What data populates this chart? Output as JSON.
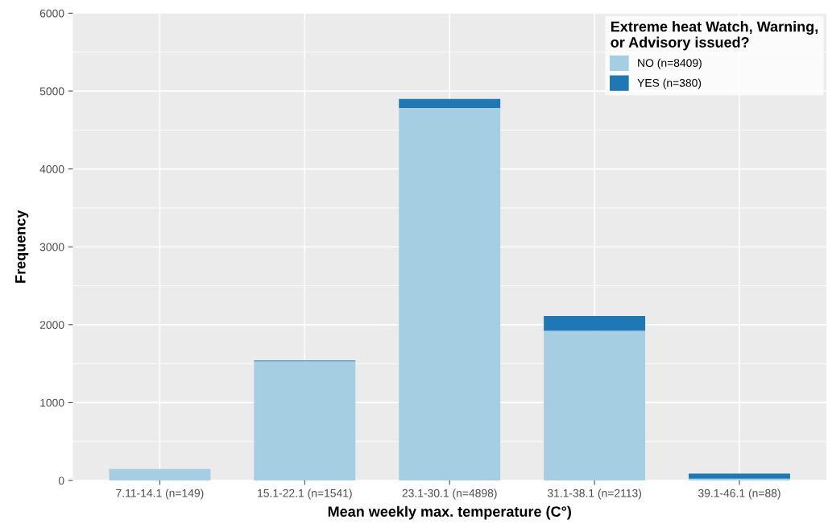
{
  "chart_data": {
    "type": "bar",
    "stacked": true,
    "xlabel": "Mean weekly max. temperature (C°)",
    "ylabel": "Frequency",
    "legend_title": "Extreme heat Watch, Warning,\nor Advisory issued?",
    "categories": [
      "7.11-14.1 (n=149)",
      "15.1-22.1 (n=1541)",
      "23.1-30.1 (n=4898)",
      "31.1-38.1 (n=2113)",
      "39.1-46.1 (n=88)"
    ],
    "series": [
      {
        "name": "NO (n=8409)",
        "color": "#a6cee3",
        "values": [
          149,
          1531,
          4783,
          1923,
          23
        ]
      },
      {
        "name": "YES (n=380)",
        "color": "#1f78b4",
        "values": [
          0,
          10,
          115,
          190,
          65
        ]
      }
    ],
    "ylim": [
      0,
      6000
    ],
    "yticks": [
      0,
      1000,
      2000,
      3000,
      4000,
      5000,
      6000
    ],
    "grid": true,
    "legend": "top right"
  }
}
